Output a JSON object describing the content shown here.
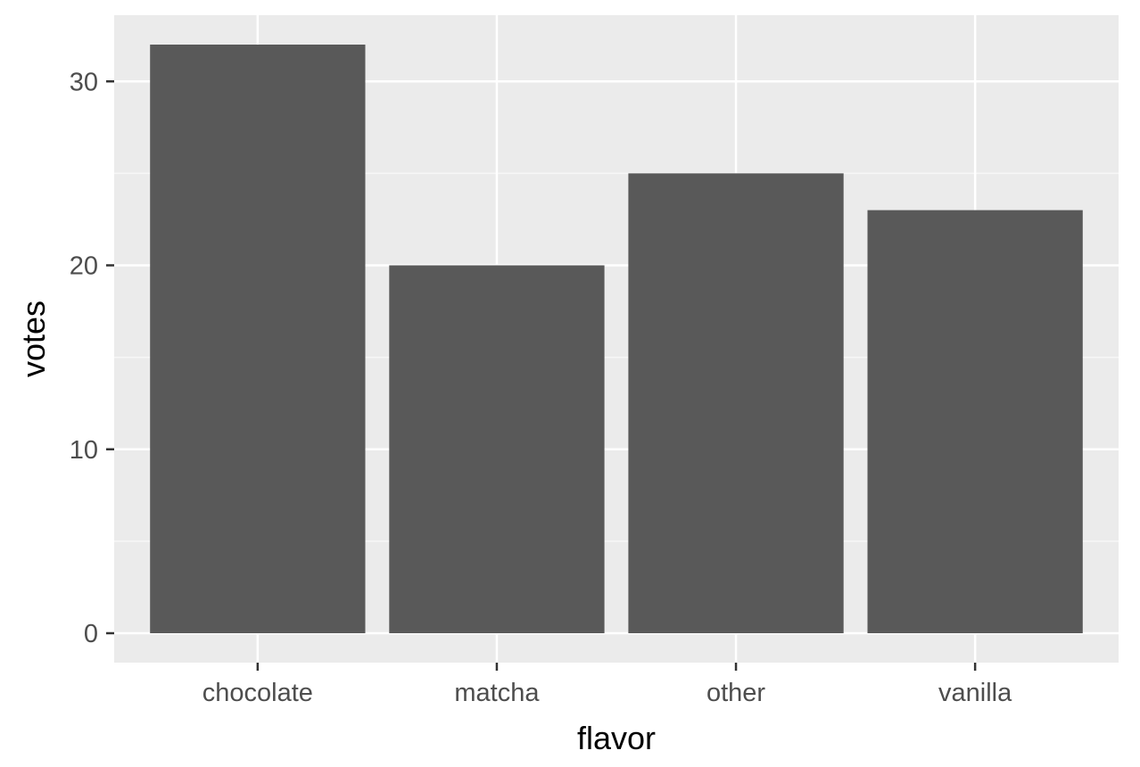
{
  "chart_data": {
    "type": "bar",
    "title": "",
    "xlabel": "flavor",
    "ylabel": "votes",
    "categories": [
      "chocolate",
      "matcha",
      "other",
      "vanilla"
    ],
    "values": [
      32,
      20,
      25,
      23
    ],
    "ylim": [
      -1.6,
      33.6
    ],
    "yticks": [
      0,
      10,
      20,
      30
    ],
    "grid": true,
    "legend": "none",
    "colors": {
      "bar": "#595959",
      "panel_background": "#ebebeb",
      "grid_major": "#ffffff",
      "grid_minor": "#f7f7f7",
      "tick_label": "#4d4d4d",
      "axis_title": "#000000"
    }
  }
}
